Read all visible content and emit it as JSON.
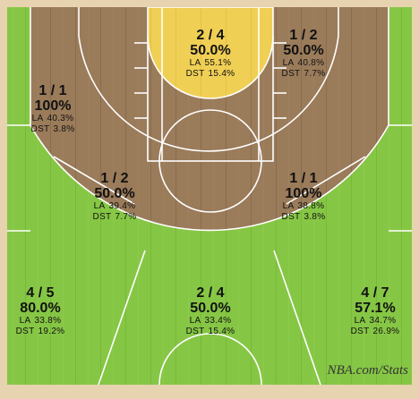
{
  "colors": {
    "wood": "#9a7b5a",
    "wood_line": "#85684a",
    "hot": "#f0cf55",
    "cold": "#86c645",
    "cold_stripe": "#7cbd3c",
    "border": "#e7d3b0",
    "line": "#ffffff"
  },
  "zones": [
    {
      "id": "restricted-area",
      "ratio": "2 / 4",
      "pct": "50.0%",
      "la_label": "LA",
      "la": "55.1%",
      "dst_label": "DST",
      "dst": "15.4%",
      "heat": "hot"
    },
    {
      "id": "right-baseline-midrange",
      "ratio": "1 / 2",
      "pct": "50.0%",
      "la_label": "LA",
      "la": "40.8%",
      "dst_label": "DST",
      "dst": "7.7%",
      "heat": "neutral"
    },
    {
      "id": "left-baseline-midrange",
      "ratio": "1 / 1",
      "pct": "100%",
      "la_label": "LA",
      "la": "40.3%",
      "dst_label": "DST",
      "dst": "3.8%",
      "heat": "neutral"
    },
    {
      "id": "left-elbow-midrange",
      "ratio": "1 / 2",
      "pct": "50.0%",
      "la_label": "LA",
      "la": "39.4%",
      "dst_label": "DST",
      "dst": "7.7%",
      "heat": "neutral"
    },
    {
      "id": "right-elbow-midrange",
      "ratio": "1 / 1",
      "pct": "100%",
      "la_label": "LA",
      "la": "38.8%",
      "dst_label": "DST",
      "dst": "3.8%",
      "heat": "neutral"
    },
    {
      "id": "left-wing-three",
      "ratio": "4 / 5",
      "pct": "80.0%",
      "la_label": "LA",
      "la": "33.8%",
      "dst_label": "DST",
      "dst": "19.2%",
      "heat": "cold"
    },
    {
      "id": "top-three",
      "ratio": "2 / 4",
      "pct": "50.0%",
      "la_label": "LA",
      "la": "33.4%",
      "dst_label": "DST",
      "dst": "15.4%",
      "heat": "cold"
    },
    {
      "id": "right-wing-three",
      "ratio": "4 / 7",
      "pct": "57.1%",
      "la_label": "LA",
      "la": "34.7%",
      "dst_label": "DST",
      "dst": "26.9%",
      "heat": "cold"
    }
  ],
  "watermark": "NBA.com/Stats"
}
